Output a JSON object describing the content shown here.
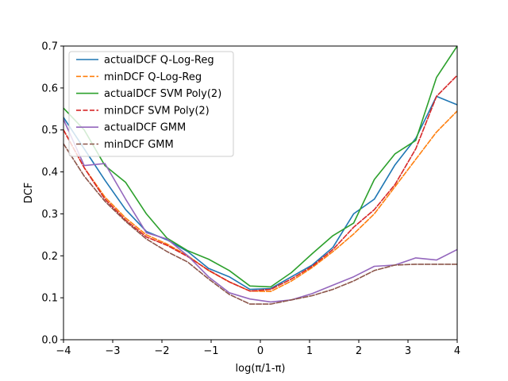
{
  "chart_data": {
    "type": "line",
    "title": "",
    "xlabel": "log(π/1-π)",
    "ylabel": "DCF",
    "xlim": [
      -4,
      4
    ],
    "ylim": [
      0,
      0.7
    ],
    "xticks": [
      "−4",
      "−3",
      "−2",
      "−1",
      "0",
      "1",
      "2",
      "3",
      "4"
    ],
    "yticks": [
      "0.0",
      "0.1",
      "0.2",
      "0.3",
      "0.4",
      "0.5",
      "0.6",
      "0.7"
    ],
    "grid": false,
    "legend_position": "top-left",
    "x": [
      -4.0,
      -3.579,
      -3.158,
      -2.737,
      -2.316,
      -1.895,
      -1.474,
      -1.053,
      -0.632,
      -0.211,
      0.211,
      0.632,
      1.053,
      1.474,
      1.895,
      2.316,
      2.737,
      3.158,
      3.579,
      4.0
    ],
    "series": [
      {
        "name": "actualDCF Q-Log-Reg",
        "color": "#1f77b4",
        "dash": "solid",
        "values": [
          0.53,
          0.455,
          0.38,
          0.31,
          0.258,
          0.238,
          0.21,
          0.17,
          0.15,
          0.12,
          0.122,
          0.15,
          0.178,
          0.22,
          0.3,
          0.335,
          0.417,
          0.48,
          0.58,
          0.56
        ]
      },
      {
        "name": "minDCF Q-Log-Reg",
        "color": "#ff7f0e",
        "dash": "dashed",
        "values": [
          0.5,
          0.41,
          0.34,
          0.29,
          0.25,
          0.228,
          0.2,
          0.165,
          0.138,
          0.116,
          0.115,
          0.14,
          0.172,
          0.21,
          0.252,
          0.3,
          0.365,
          0.43,
          0.495,
          0.545
        ]
      },
      {
        "name": "actualDCF SVM Poly(2)",
        "color": "#2ca02c",
        "dash": "solid",
        "values": [
          0.552,
          0.5,
          0.415,
          0.375,
          0.3,
          0.242,
          0.212,
          0.192,
          0.165,
          0.128,
          0.126,
          0.16,
          0.205,
          0.248,
          0.278,
          0.382,
          0.443,
          0.475,
          0.625,
          0.7
        ]
      },
      {
        "name": "minDCF SVM Poly(2)",
        "color": "#d62728",
        "dash": "dashed",
        "values": [
          0.5,
          0.41,
          0.335,
          0.285,
          0.245,
          0.225,
          0.198,
          0.166,
          0.138,
          0.116,
          0.12,
          0.145,
          0.175,
          0.215,
          0.268,
          0.31,
          0.37,
          0.455,
          0.58,
          0.63
        ]
      },
      {
        "name": "actualDCF GMM",
        "color": "#9467bd",
        "dash": "solid",
        "values": [
          0.525,
          0.415,
          0.42,
          0.335,
          0.255,
          0.24,
          0.2,
          0.15,
          0.112,
          0.097,
          0.09,
          0.095,
          0.11,
          0.13,
          0.15,
          0.175,
          0.178,
          0.195,
          0.19,
          0.215
        ]
      },
      {
        "name": "minDCF GMM",
        "color": "#8c564b",
        "dash": "dashed",
        "values": [
          0.467,
          0.39,
          0.33,
          0.282,
          0.24,
          0.21,
          0.185,
          0.145,
          0.108,
          0.085,
          0.085,
          0.095,
          0.105,
          0.12,
          0.14,
          0.165,
          0.178,
          0.18,
          0.18,
          0.18
        ]
      }
    ]
  }
}
